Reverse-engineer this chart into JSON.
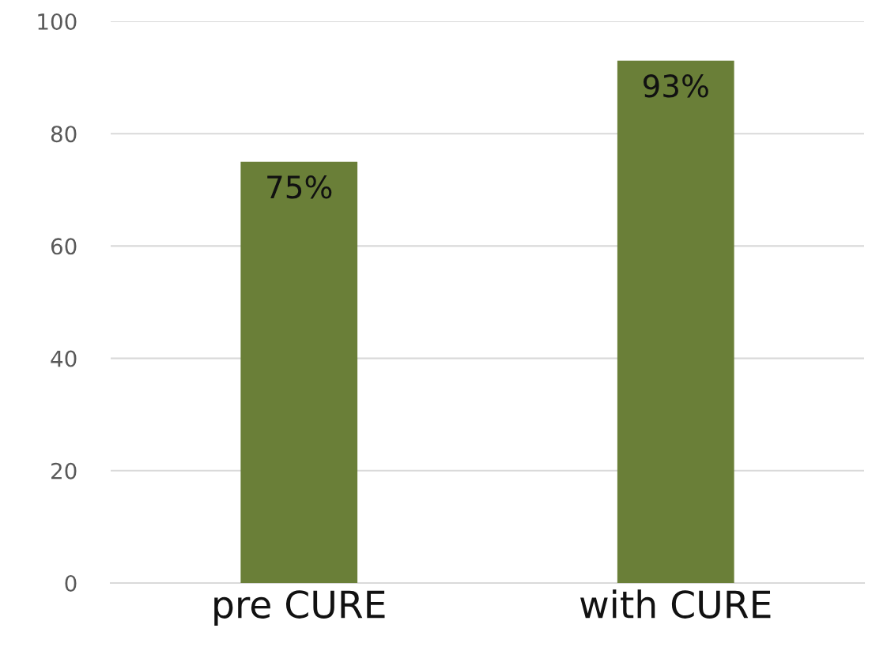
{
  "chart_data": {
    "type": "bar",
    "categories": [
      "pre CURE",
      "with CURE"
    ],
    "values": [
      75,
      93
    ],
    "value_labels": [
      "75%",
      "93%"
    ],
    "color": "#6a7f38",
    "ylim": [
      0,
      100
    ],
    "yticks": [
      0,
      20,
      40,
      60,
      80,
      100
    ],
    "grid": "y"
  }
}
